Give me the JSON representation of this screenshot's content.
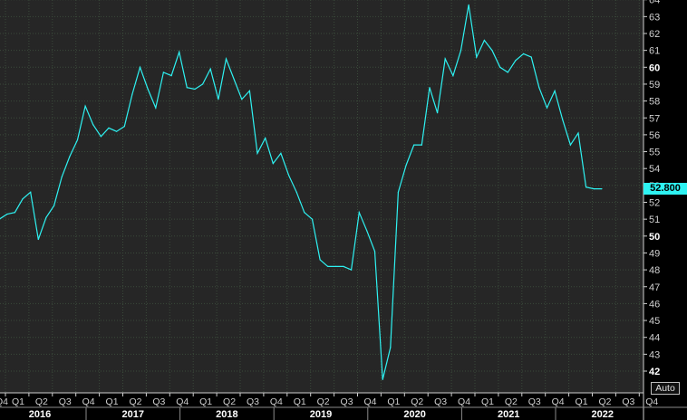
{
  "colors": {
    "background": "#000000",
    "plot_background": "#262626",
    "grid": "#3a4a3a",
    "series_line": "#2ef2f2",
    "text": "#d0d0d0"
  },
  "last_value_label": "52.800",
  "auto_label": "Auto",
  "chart_data": {
    "type": "line",
    "title": "",
    "xlabel": "",
    "ylabel": "",
    "ylim": [
      40.8,
      64.5
    ],
    "y_ticks": [
      42,
      43,
      44,
      45,
      46,
      47,
      48,
      49,
      50,
      51,
      52,
      53,
      54,
      55,
      56,
      57,
      58,
      59,
      60,
      61,
      62,
      63,
      64
    ],
    "y_major_ticks": [
      42,
      50,
      60
    ],
    "quarter_labels": [
      "Q1",
      "Q2",
      "Q3",
      "Q4",
      "Q1",
      "Q2",
      "Q3",
      "Q4",
      "Q1",
      "Q2",
      "Q3",
      "Q4",
      "Q1",
      "Q2",
      "Q3",
      "Q4",
      "Q1",
      "Q2",
      "Q3",
      "Q4",
      "Q1",
      "Q2",
      "Q3",
      "Q4",
      "Q1",
      "Q2",
      "Q3",
      "Q4"
    ],
    "years": [
      "2016",
      "2017",
      "2018",
      "2019",
      "2020",
      "2021",
      "2022"
    ],
    "x_unit": "months since Jan 2016",
    "values": [
      48.8,
      51.0,
      51.3,
      51.4,
      52.2,
      52.6,
      49.8,
      51.1,
      51.8,
      53.5,
      54.7,
      55.7,
      57.7,
      56.6,
      55.9,
      56.4,
      56.2,
      56.5,
      58.4,
      60.0,
      58.7,
      57.6,
      59.7,
      59.5,
      60.9,
      58.8,
      58.7,
      59.0,
      59.9,
      58.1,
      60.5,
      59.3,
      58.1,
      58.6,
      54.9,
      55.8,
      54.3,
      54.9,
      53.6,
      52.6,
      51.4,
      51.0,
      48.6,
      48.2,
      48.2,
      48.2,
      48.0,
      51.4,
      50.3,
      49.1,
      41.5,
      43.4,
      52.6,
      54.2,
      55.4,
      55.4,
      58.8,
      57.3,
      60.5,
      59.5,
      61.0,
      63.7,
      60.6,
      61.6,
      61.0,
      60.0,
      59.7,
      60.4,
      60.8,
      60.6,
      58.8,
      57.6,
      58.6,
      56.9,
      55.4,
      56.1,
      52.9,
      52.8,
      52.8
    ]
  }
}
